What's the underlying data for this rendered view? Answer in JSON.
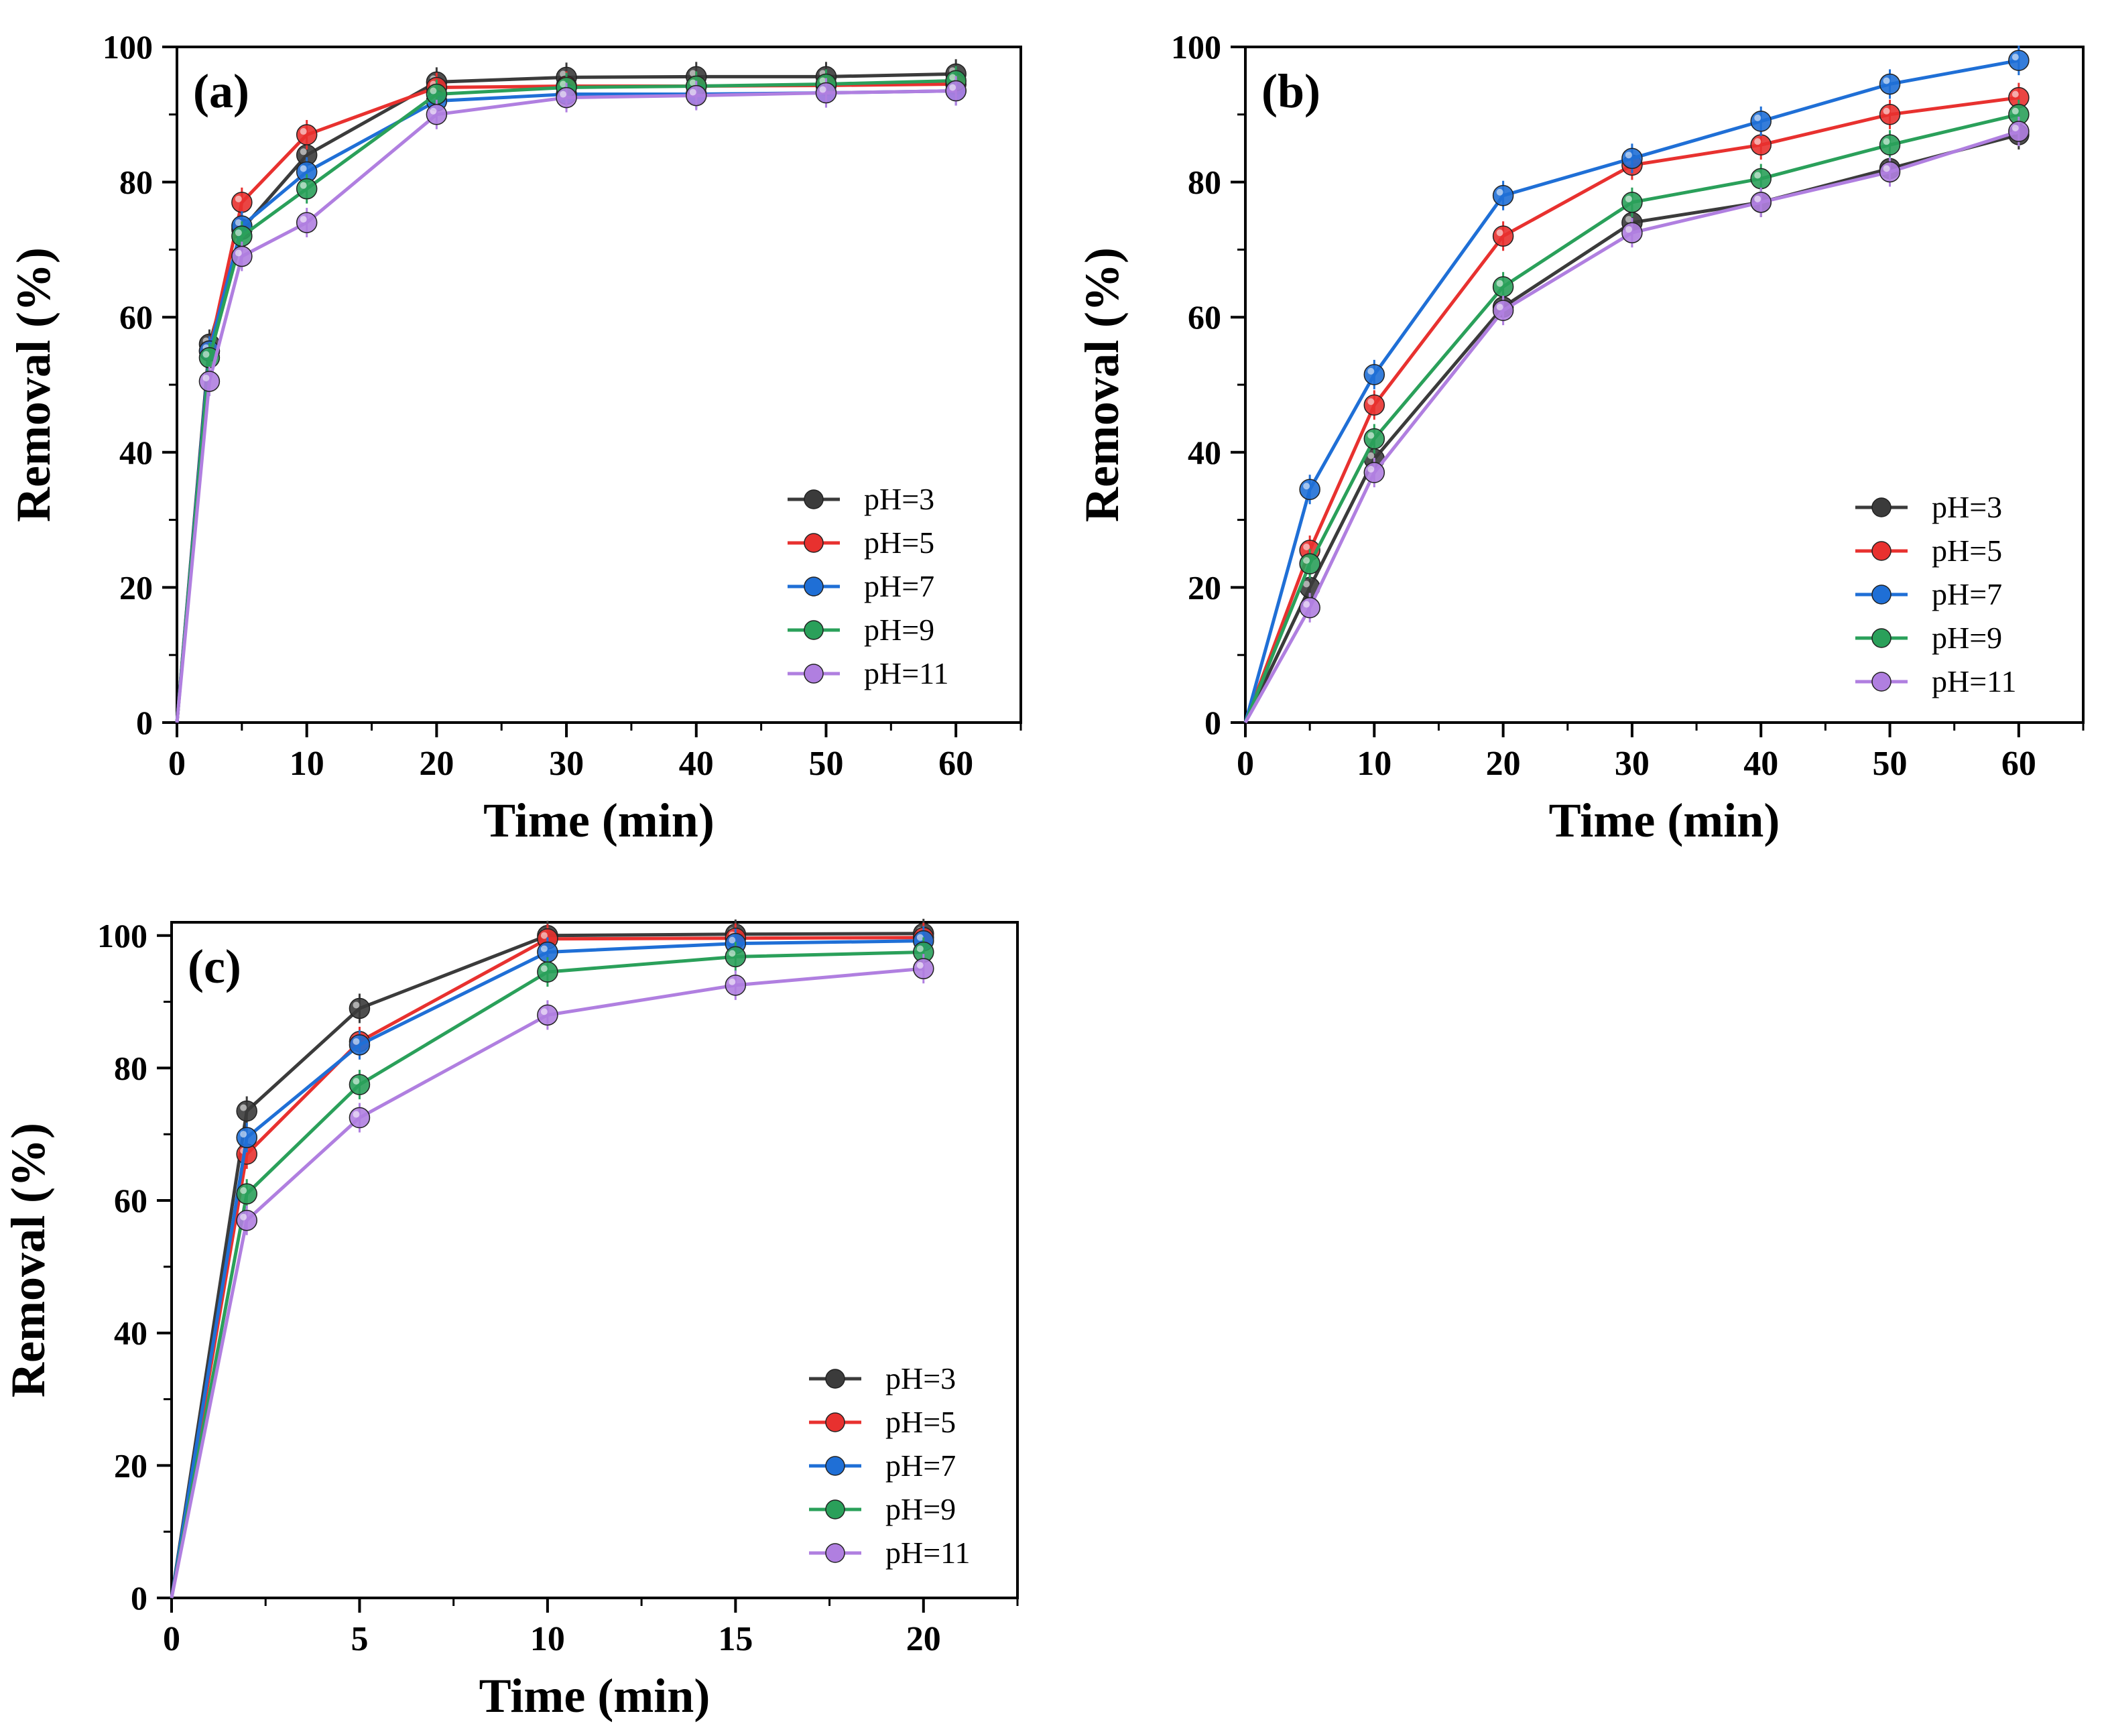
{
  "chart_data": [
    {
      "type": "line",
      "panel_label": "(a)",
      "xlabel": "Time (min)",
      "ylabel": "Removal (%)",
      "xlim": [
        0,
        65
      ],
      "ylim": [
        0,
        100
      ],
      "xticks": [
        0,
        10,
        20,
        30,
        40,
        50,
        60
      ],
      "yticks": [
        0,
        20,
        40,
        60,
        80,
        100
      ],
      "legend_position": "bottom-right",
      "x": [
        0,
        2.5,
        5,
        10,
        20,
        30,
        40,
        50,
        60
      ],
      "series": [
        {
          "name": "pH=3",
          "color": "#3b3b3b",
          "values": [
            0,
            56,
            73,
            84,
            94.8,
            95.5,
            95.6,
            95.6,
            96
          ]
        },
        {
          "name": "pH=5",
          "color": "#e8312f",
          "values": [
            0,
            55,
            77,
            87,
            94,
            94.2,
            94.2,
            94.3,
            94.5
          ]
        },
        {
          "name": "pH=7",
          "color": "#1f6fd6",
          "values": [
            0,
            55,
            73.5,
            81.5,
            92,
            93,
            93,
            93.2,
            93.5
          ]
        },
        {
          "name": "pH=9",
          "color": "#2aa05a",
          "values": [
            0,
            54,
            72,
            79,
            93,
            94,
            94.2,
            94.5,
            95
          ]
        },
        {
          "name": "pH=11",
          "color": "#b07fe0",
          "values": [
            0,
            50.5,
            69,
            74,
            90,
            92.5,
            92.8,
            93.2,
            93.5
          ]
        }
      ]
    },
    {
      "type": "line",
      "panel_label": "(b)",
      "xlabel": "Time (min)",
      "ylabel": "Removal (%)",
      "xlim": [
        0,
        65
      ],
      "ylim": [
        0,
        100
      ],
      "xticks": [
        0,
        10,
        20,
        30,
        40,
        50,
        60
      ],
      "yticks": [
        0,
        20,
        40,
        60,
        80,
        100
      ],
      "legend_position": "bottom-right",
      "x": [
        0,
        5,
        10,
        20,
        30,
        40,
        50,
        60
      ],
      "series": [
        {
          "name": "pH=3",
          "color": "#3b3b3b",
          "values": [
            0,
            20,
            39,
            61.5,
            74,
            77,
            82,
            87
          ]
        },
        {
          "name": "pH=5",
          "color": "#e8312f",
          "values": [
            0,
            25.5,
            47,
            72,
            82.5,
            85.5,
            90,
            92.5
          ]
        },
        {
          "name": "pH=7",
          "color": "#1f6fd6",
          "values": [
            0,
            34.5,
            51.5,
            78,
            83.5,
            89,
            94.5,
            98
          ]
        },
        {
          "name": "pH=9",
          "color": "#2aa05a",
          "values": [
            0,
            23.5,
            42,
            64.5,
            77,
            80.5,
            85.5,
            90
          ]
        },
        {
          "name": "pH=11",
          "color": "#b07fe0",
          "values": [
            0,
            17,
            37,
            61,
            72.5,
            77,
            81.5,
            87.5
          ]
        }
      ]
    },
    {
      "type": "line",
      "panel_label": "(c)",
      "xlabel": "Time (min)",
      "ylabel": "Removal (%)",
      "xlim": [
        0,
        22.5
      ],
      "ylim": [
        0,
        102
      ],
      "xticks": [
        0,
        5,
        10,
        15,
        20
      ],
      "yticks": [
        0,
        20,
        40,
        60,
        80,
        100
      ],
      "legend_position": "bottom-right",
      "x": [
        0,
        2,
        5,
        10,
        15,
        20
      ],
      "series": [
        {
          "name": "pH=3",
          "color": "#3b3b3b",
          "values": [
            0,
            73.5,
            89,
            100,
            100.2,
            100.3
          ]
        },
        {
          "name": "pH=5",
          "color": "#e8312f",
          "values": [
            0,
            67,
            84,
            99.5,
            99.6,
            99.7
          ]
        },
        {
          "name": "pH=7",
          "color": "#1f6fd6",
          "values": [
            0,
            69.5,
            83.5,
            97.5,
            98.8,
            99.2
          ]
        },
        {
          "name": "pH=9",
          "color": "#2aa05a",
          "values": [
            0,
            61,
            77.5,
            94.5,
            96.8,
            97.5
          ]
        },
        {
          "name": "pH=11",
          "color": "#b07fe0",
          "values": [
            0,
            57,
            72.5,
            88,
            92.5,
            95
          ]
        }
      ]
    }
  ]
}
